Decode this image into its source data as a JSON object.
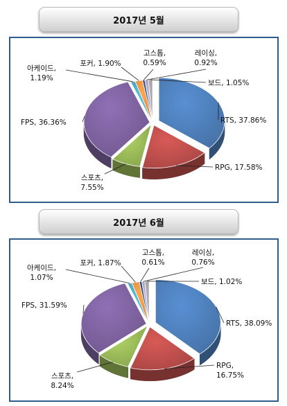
{
  "chart_data": [
    {
      "type": "pie",
      "title": "2017년 5월",
      "slices": [
        {
          "name": "RTS",
          "value": 37.86,
          "label": "RTS, 37.86%",
          "color": "#4f81bd"
        },
        {
          "name": "RPG",
          "value": 17.58,
          "label": "RPG, 17.58%",
          "color": "#c0504d"
        },
        {
          "name": "스포츠",
          "value": 7.55,
          "label": "스포츠,|7.55%",
          "color": "#9bbb59"
        },
        {
          "name": "FPS",
          "value": 36.36,
          "label": "FPS, 36.36%",
          "color": "#8064a2"
        },
        {
          "name": "아케이드",
          "value": 1.19,
          "label": "아케이드,|1.19%",
          "color": "#4bacc6"
        },
        {
          "name": "포커",
          "value": 1.9,
          "label": "포커, 1.90%",
          "color": "#f79646"
        },
        {
          "name": "고스톱",
          "value": 0.59,
          "label": "고스톱,|0.59%",
          "color": "#2c4d75"
        },
        {
          "name": "레이싱",
          "value": 0.92,
          "label": "레이싱,|0.92%",
          "color": "#b3a2c7"
        },
        {
          "name": "보드",
          "value": 1.05,
          "label": "보드, 1.05%",
          "color": "#a6a6a6"
        }
      ]
    },
    {
      "type": "pie",
      "title": "2017년 6월",
      "slices": [
        {
          "name": "RTS",
          "value": 38.09,
          "label": "RTS, 38.09%",
          "color": "#4f81bd"
        },
        {
          "name": "RPG",
          "value": 16.75,
          "label": "RPG,|16.75%",
          "color": "#c0504d"
        },
        {
          "name": "스포츠",
          "value": 8.24,
          "label": "스포츠,|8.24%",
          "color": "#9bbb59"
        },
        {
          "name": "FPS",
          "value": 31.59,
          "label": "FPS, 31.59%",
          "color": "#8064a2"
        },
        {
          "name": "아케이드",
          "value": 1.07,
          "label": "아케이드,|1.07%",
          "color": "#4bacc6"
        },
        {
          "name": "포커",
          "value": 1.87,
          "label": "포커, 1.87%",
          "color": "#f79646"
        },
        {
          "name": "고스톱",
          "value": 0.61,
          "label": "고스톱,|0.61%",
          "color": "#2c4d75"
        },
        {
          "name": "레이싱",
          "value": 0.76,
          "label": "레이싱,|0.76%",
          "color": "#b3a2c7"
        },
        {
          "name": "보드",
          "value": 1.02,
          "label": "보드, 1.02%",
          "color": "#a6a6a6"
        }
      ]
    }
  ]
}
